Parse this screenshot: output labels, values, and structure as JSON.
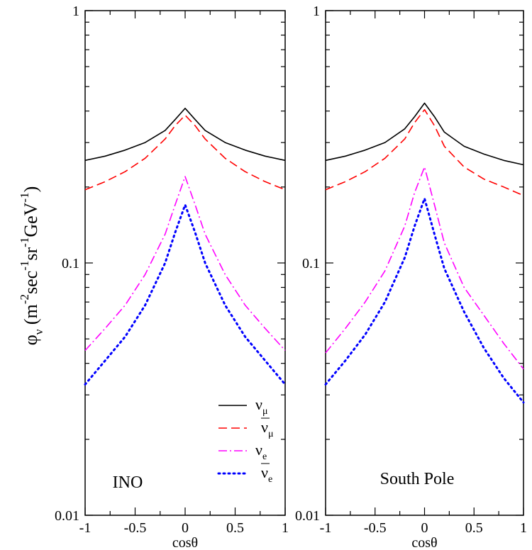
{
  "chart_data": [
    {
      "type": "line",
      "panel_label": "INO",
      "xlabel": "cosθ",
      "ylabel": "φν (m⁻²sec⁻¹sr⁻¹GeV⁻¹)",
      "xlim": [
        -1,
        1
      ],
      "ylim": [
        0.01,
        1
      ],
      "yscale": "log",
      "xticks": [
        -1,
        -0.5,
        0,
        0.5,
        1
      ],
      "xtick_labels": [
        "-1",
        "-0.5",
        "0",
        "0.5",
        "1"
      ],
      "yticks": [
        0.01,
        0.1,
        1
      ],
      "ytick_labels": [
        "0.01",
        "0.1",
        "1"
      ],
      "x": [
        -1,
        -0.8,
        -0.6,
        -0.4,
        -0.2,
        -0.1,
        0,
        0.1,
        0.2,
        0.4,
        0.6,
        0.8,
        1
      ],
      "series": [
        {
          "id": "numu",
          "symbol": "ν",
          "subscript": "μ",
          "bar": false,
          "color": "#000000",
          "dash": "",
          "values": [
            0.255,
            0.265,
            0.28,
            0.3,
            0.335,
            0.37,
            0.41,
            0.37,
            0.335,
            0.3,
            0.28,
            0.265,
            0.255
          ]
        },
        {
          "id": "numubar",
          "symbol": "ν",
          "subscript": "μ",
          "bar": true,
          "color": "#ff0000",
          "dash": "12,6",
          "values": [
            0.195,
            0.21,
            0.23,
            0.26,
            0.31,
            0.35,
            0.385,
            0.35,
            0.31,
            0.26,
            0.23,
            0.21,
            0.195
          ]
        },
        {
          "id": "nue",
          "symbol": "ν",
          "subscript": "e",
          "bar": false,
          "color": "#ff00ff",
          "dash": "12,4,2,4",
          "values": [
            0.045,
            0.055,
            0.068,
            0.09,
            0.13,
            0.17,
            0.22,
            0.17,
            0.13,
            0.09,
            0.068,
            0.055,
            0.045
          ]
        },
        {
          "id": "nuebar",
          "symbol": "ν",
          "subscript": "e",
          "bar": true,
          "color": "#0000ff",
          "dash": "2,5",
          "values": [
            0.033,
            0.041,
            0.051,
            0.068,
            0.1,
            0.132,
            0.17,
            0.132,
            0.1,
            0.068,
            0.051,
            0.041,
            0.033
          ]
        }
      ],
      "legend_position": "bottom-right"
    },
    {
      "type": "line",
      "panel_label": "South Pole",
      "xlabel": "cosθ",
      "xlim": [
        -1,
        1
      ],
      "ylim": [
        0.01,
        1
      ],
      "yscale": "log",
      "xticks": [
        -1,
        -0.5,
        0,
        0.5,
        1
      ],
      "xtick_labels": [
        "-1",
        "-0.5",
        "0",
        "0.5",
        "1"
      ],
      "yticks": [
        0.01,
        0.1,
        1
      ],
      "ytick_labels": [
        "0.01",
        "0.1",
        "1"
      ],
      "x": [
        -1,
        -0.8,
        -0.6,
        -0.4,
        -0.2,
        -0.1,
        0,
        0.1,
        0.2,
        0.4,
        0.6,
        0.8,
        1
      ],
      "series": [
        {
          "id": "numu",
          "color": "#000000",
          "dash": "",
          "values": [
            0.255,
            0.265,
            0.28,
            0.3,
            0.34,
            0.38,
            0.43,
            0.38,
            0.33,
            0.29,
            0.27,
            0.255,
            0.245
          ]
        },
        {
          "id": "numubar",
          "color": "#ff0000",
          "dash": "12,6",
          "values": [
            0.195,
            0.21,
            0.23,
            0.26,
            0.31,
            0.36,
            0.405,
            0.35,
            0.29,
            0.24,
            0.215,
            0.2,
            0.185
          ]
        },
        {
          "id": "nue",
          "color": "#ff00ff",
          "dash": "12,4,2,4",
          "values": [
            0.044,
            0.055,
            0.07,
            0.093,
            0.14,
            0.19,
            0.24,
            0.17,
            0.12,
            0.08,
            0.062,
            0.048,
            0.038
          ]
        },
        {
          "id": "nuebar",
          "color": "#0000ff",
          "dash": "2,5",
          "values": [
            0.033,
            0.041,
            0.052,
            0.07,
            0.105,
            0.14,
            0.18,
            0.13,
            0.095,
            0.064,
            0.046,
            0.035,
            0.028
          ]
        }
      ]
    }
  ]
}
